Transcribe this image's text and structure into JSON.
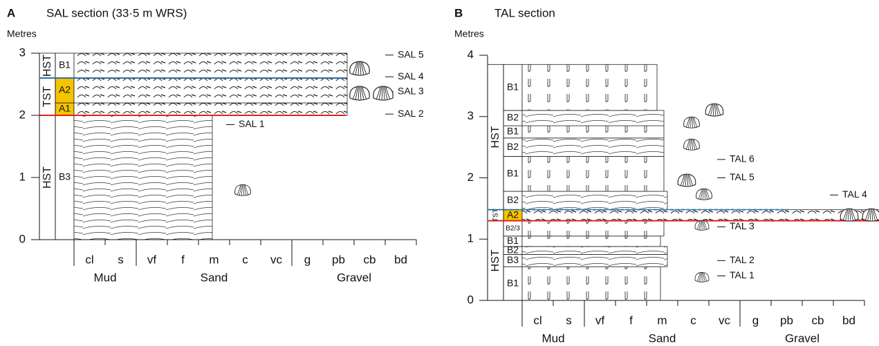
{
  "panels": [
    {
      "letter": "A",
      "title": "SAL section (33·5 m WRS)",
      "y_label": "Metres",
      "yticks": [
        0,
        1,
        2,
        3
      ],
      "grain_sizes": [
        "cl",
        "s",
        "vf",
        "f",
        "m",
        "c",
        "vc",
        "g",
        "pb",
        "cb",
        "bd"
      ],
      "grain_groups": [
        "Mud",
        "Sand",
        "Gravel"
      ],
      "tracts": [
        "HST",
        "TST",
        "HST"
      ],
      "units": [
        "B3",
        "A1",
        "A2",
        "B1"
      ],
      "samples": [
        "SAL 1",
        "SAL 2",
        "SAL 3",
        "SAL 4",
        "SAL 5"
      ]
    },
    {
      "letter": "B",
      "title": "TAL section",
      "y_label": "Metres",
      "yticks": [
        0,
        1,
        2,
        3,
        4
      ],
      "grain_sizes": [
        "cl",
        "s",
        "vf",
        "f",
        "m",
        "c",
        "vc",
        "g",
        "pb",
        "cb",
        "bd"
      ],
      "grain_groups": [
        "Mud",
        "Sand",
        "Gravel"
      ],
      "tracts": [
        "HST",
        "TST",
        "HST"
      ],
      "units": [
        "B1",
        "B3",
        "B2",
        "B1",
        "B2/3",
        "A2",
        "B2",
        "B1",
        "B2",
        "B1",
        "B2",
        "B1"
      ],
      "samples": [
        "TAL 1",
        "TAL 2",
        "TAL 3",
        "TAL 4",
        "TAL 5",
        "TAL 6"
      ]
    }
  ]
}
